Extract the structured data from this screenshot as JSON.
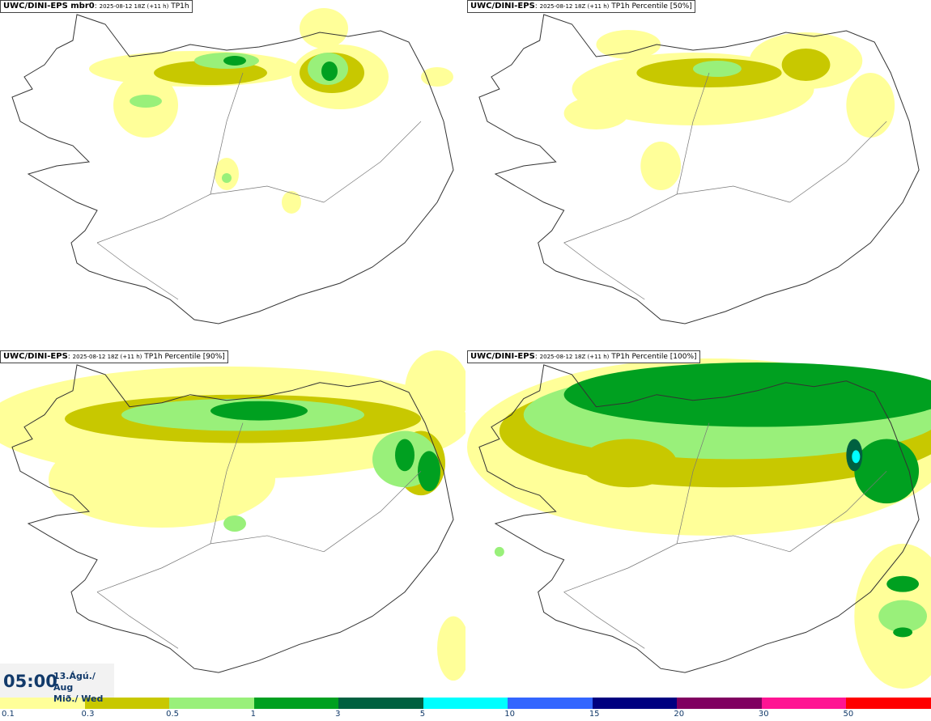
{
  "panels": [
    {
      "model": "UWC/DINI-EPS mbr0",
      "run": "2025-08-12 18Z (+11 h)",
      "field": "TP1h",
      "intensity": 0
    },
    {
      "model": "UWC/DINI-EPS",
      "run": "2025-08-12 18Z (+11 h)",
      "field": "TP1h Percentile [50%]",
      "intensity": 1
    },
    {
      "model": "UWC/DINI-EPS",
      "run": "2025-08-12 18Z (+11 h)",
      "field": "TP1h Percentile [90%]",
      "intensity": 2
    },
    {
      "model": "UWC/DINI-EPS",
      "run": "2025-08-12 18Z (+11 h)",
      "field": "TP1h Percentile [100%]",
      "intensity": 3
    }
  ],
  "valid_time": {
    "time": "05:00",
    "date_line1": "13.Ágú./ Aug",
    "date_line2": "Mið./ Wed"
  },
  "legend": {
    "colors": [
      "#ffff99",
      "#c8c800",
      "#99f07a",
      "#00a020",
      "#006040",
      "#00ffff",
      "#3366ff",
      "#000080",
      "#800060",
      "#ff1493",
      "#ff0000"
    ],
    "tick_labels": [
      "0.1",
      "0.3",
      "0.5",
      "1",
      "3",
      "5",
      "10",
      "15",
      "20",
      "30",
      "50"
    ]
  }
}
